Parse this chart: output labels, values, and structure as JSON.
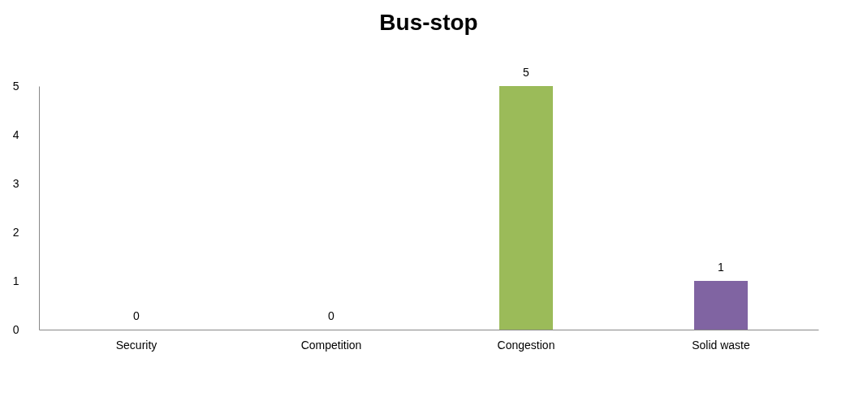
{
  "chart_data": {
    "type": "bar",
    "title": "Bus-stop",
    "categories": [
      "Security",
      "Competition",
      "Congestion",
      "Solid waste"
    ],
    "values": [
      0,
      0,
      5,
      1
    ],
    "colors": [
      "#4f81bd",
      "#c0504d",
      "#9bbb59",
      "#8064a2"
    ],
    "ylim": [
      0,
      5
    ],
    "yticks": [
      0,
      1,
      2,
      3,
      4,
      5
    ],
    "grid": false,
    "legend": false,
    "data_labels": true
  }
}
